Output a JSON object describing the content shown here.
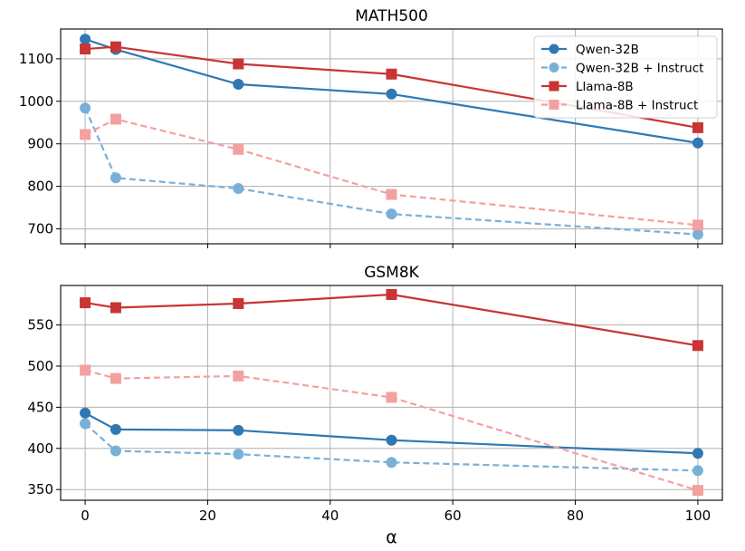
{
  "colors": {
    "qwen": "#2f78b3",
    "qwen_instruct": "#79b0d8",
    "llama": "#c93434",
    "llama_instruct": "#f4a0a0",
    "grid": "#b0b0b0"
  },
  "xlabel": "α",
  "chart_data": [
    {
      "type": "line",
      "title": "MATH500",
      "x": [
        0,
        5,
        25,
        50,
        100
      ],
      "xlim": [
        -4,
        104
      ],
      "ylim": [
        665,
        1170
      ],
      "xticks": [
        "0",
        "20",
        "40",
        "60",
        "80",
        "100"
      ],
      "xtick_values": [
        0,
        20,
        40,
        60,
        80,
        100
      ],
      "yticks": [
        "700",
        "800",
        "900",
        "1000",
        "1100"
      ],
      "ytick_values": [
        700,
        800,
        900,
        1000,
        1100
      ],
      "grid": true,
      "legend": "upper right",
      "series": [
        {
          "name": "Qwen-32B",
          "values": [
            1146,
            1122,
            1040,
            1017,
            902
          ],
          "marker": "circle",
          "style": "solid",
          "color_key": "qwen"
        },
        {
          "name": "Qwen-32B + Instruct",
          "values": [
            984,
            820,
            795,
            735,
            687
          ],
          "marker": "circle",
          "style": "dashed",
          "color_key": "qwen_instruct"
        },
        {
          "name": "Llama-8B",
          "values": [
            1123,
            1128,
            1088,
            1064,
            938
          ],
          "marker": "square",
          "style": "solid",
          "color_key": "llama"
        },
        {
          "name": "Llama-8B + Instruct",
          "values": [
            922,
            958,
            887,
            781,
            709
          ],
          "marker": "square",
          "style": "dashed",
          "color_key": "llama_instruct"
        }
      ]
    },
    {
      "type": "line",
      "title": "GSM8K",
      "x": [
        0,
        5,
        25,
        50,
        100
      ],
      "xlim": [
        -4,
        104
      ],
      "ylim": [
        337,
        598
      ],
      "xticks": [
        "0",
        "20",
        "40",
        "60",
        "80",
        "100"
      ],
      "xtick_values": [
        0,
        20,
        40,
        60,
        80,
        100
      ],
      "yticks": [
        "350",
        "400",
        "450",
        "500",
        "550"
      ],
      "ytick_values": [
        350,
        400,
        450,
        500,
        550
      ],
      "grid": true,
      "series": [
        {
          "name": "Qwen-32B",
          "values": [
            443,
            423,
            422,
            410,
            394
          ],
          "marker": "circle",
          "style": "solid",
          "color_key": "qwen"
        },
        {
          "name": "Qwen-32B + Instruct",
          "values": [
            430,
            397,
            393,
            383,
            373
          ],
          "marker": "circle",
          "style": "dashed",
          "color_key": "qwen_instruct"
        },
        {
          "name": "Llama-8B",
          "values": [
            577,
            571,
            576,
            587,
            525
          ],
          "marker": "square",
          "style": "solid",
          "color_key": "llama"
        },
        {
          "name": "Llama-8B + Instruct",
          "values": [
            495,
            485,
            488,
            462,
            349
          ],
          "marker": "square",
          "style": "dashed",
          "color_key": "llama_instruct"
        }
      ]
    }
  ]
}
